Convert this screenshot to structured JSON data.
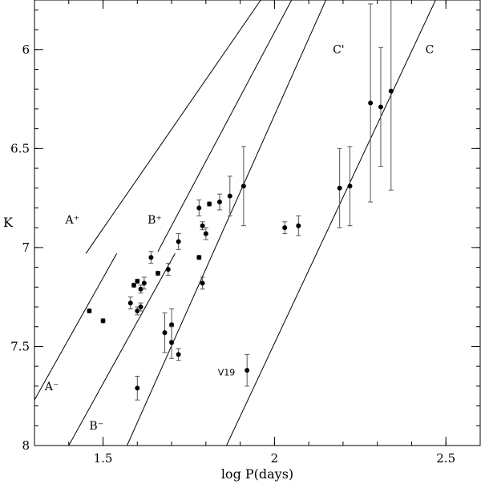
{
  "chart_data": {
    "type": "scatter",
    "title": "",
    "xlabel": "log P(days)",
    "ylabel": "K",
    "xlim": [
      1.3,
      2.6
    ],
    "ylim": [
      5.75,
      8.0
    ],
    "y_inverted": true,
    "grid": false,
    "x_ticks": [
      1.5,
      2,
      2.5
    ],
    "x_tick_labels": [
      "1.5",
      "2",
      "2.5"
    ],
    "x_minor_step": 0.1,
    "y_ticks": [
      6,
      6.5,
      7,
      7.5,
      8
    ],
    "y_tick_labels": [
      "6",
      "6.5",
      "7",
      "7.5",
      "8"
    ],
    "y_minor_step": 0.1,
    "point_color": "#000000",
    "series": [
      {
        "values": [
          {
            "x": 1.46,
            "y": 7.32,
            "err": 0.01
          },
          {
            "x": 1.5,
            "y": 7.37,
            "err": 0.01
          },
          {
            "x": 1.58,
            "y": 7.28,
            "err": 0.03
          },
          {
            "x": 1.59,
            "y": 7.19,
            "err": 0.01
          },
          {
            "x": 1.6,
            "y": 7.17,
            "err": 0.01
          },
          {
            "x": 1.6,
            "y": 7.32,
            "err": 0.02
          },
          {
            "x": 1.61,
            "y": 7.3,
            "err": 0.02
          },
          {
            "x": 1.61,
            "y": 7.21,
            "err": 0.02
          },
          {
            "x": 1.62,
            "y": 7.18,
            "err": 0.03
          },
          {
            "x": 1.6,
            "y": 7.71,
            "err": 0.06
          },
          {
            "x": 1.64,
            "y": 7.05,
            "err": 0.03
          },
          {
            "x": 1.66,
            "y": 7.13,
            "err": 0.01
          },
          {
            "x": 1.68,
            "y": 7.43,
            "err": 0.1
          },
          {
            "x": 1.69,
            "y": 7.11,
            "err": 0.03
          },
          {
            "x": 1.7,
            "y": 7.39,
            "err": 0.08
          },
          {
            "x": 1.7,
            "y": 7.48,
            "err": 0.08
          },
          {
            "x": 1.72,
            "y": 6.97,
            "err": 0.04
          },
          {
            "x": 1.72,
            "y": 7.54,
            "err": 0.03
          },
          {
            "x": 1.78,
            "y": 6.8,
            "err": 0.04
          },
          {
            "x": 1.78,
            "y": 7.05,
            "err": 0.01
          },
          {
            "x": 1.79,
            "y": 6.89,
            "err": 0.02
          },
          {
            "x": 1.79,
            "y": 7.18,
            "err": 0.03
          },
          {
            "x": 1.8,
            "y": 6.93,
            "err": 0.03
          },
          {
            "x": 1.81,
            "y": 6.78,
            "err": 0.01
          },
          {
            "x": 1.84,
            "y": 6.77,
            "err": 0.04
          },
          {
            "x": 1.87,
            "y": 6.74,
            "err": 0.1
          },
          {
            "x": 1.91,
            "y": 6.69,
            "err": 0.2
          },
          {
            "x": 1.92,
            "y": 7.62,
            "err": 0.08
          },
          {
            "x": 2.03,
            "y": 6.9,
            "err": 0.03
          },
          {
            "x": 2.07,
            "y": 6.89,
            "err": 0.05
          },
          {
            "x": 2.19,
            "y": 6.7,
            "err": 0.2
          },
          {
            "x": 2.22,
            "y": 6.69,
            "err": 0.2
          },
          {
            "x": 2.28,
            "y": 6.27,
            "err": 0.5
          },
          {
            "x": 2.31,
            "y": 6.29,
            "err": 0.3
          },
          {
            "x": 2.34,
            "y": 6.21,
            "err": 0.5
          }
        ]
      }
    ],
    "reference_lines": [
      {
        "label": "A⁺",
        "from": {
          "x": 1.45,
          "y": 7.03
        },
        "to": {
          "x": 1.96,
          "y": 5.75
        }
      },
      {
        "label": "A⁻",
        "from": {
          "x": 1.3,
          "y": 7.77
        },
        "to": {
          "x": 1.54,
          "y": 7.03
        }
      },
      {
        "label": "B⁺",
        "from": {
          "x": 1.66,
          "y": 7.02
        },
        "to": {
          "x": 2.05,
          "y": 5.75
        }
      },
      {
        "label": "B⁻",
        "from": {
          "x": 1.4,
          "y": 8.0
        },
        "to": {
          "x": 1.71,
          "y": 7.03
        }
      },
      {
        "label": "C'",
        "from": {
          "x": 1.57,
          "y": 8.0
        },
        "to": {
          "x": 2.15,
          "y": 5.75
        }
      },
      {
        "label": "C",
        "from": {
          "x": 1.86,
          "y": 8.0
        },
        "to": {
          "x": 2.47,
          "y": 5.75
        }
      }
    ],
    "line_labels": [
      {
        "text": "A⁺",
        "x": 1.39,
        "y": 6.88
      },
      {
        "text": "B⁺",
        "x": 1.63,
        "y": 6.88
      },
      {
        "text": "C'",
        "x": 2.17,
        "y": 6.02
      },
      {
        "text": "C",
        "x": 2.44,
        "y": 6.02
      },
      {
        "text": "A⁻",
        "x": 1.33,
        "y": 7.72
      },
      {
        "text": "B⁻",
        "x": 1.46,
        "y": 7.92
      }
    ],
    "annotations": [
      {
        "text": "V19",
        "x": 1.86,
        "y": 7.63
      }
    ]
  }
}
